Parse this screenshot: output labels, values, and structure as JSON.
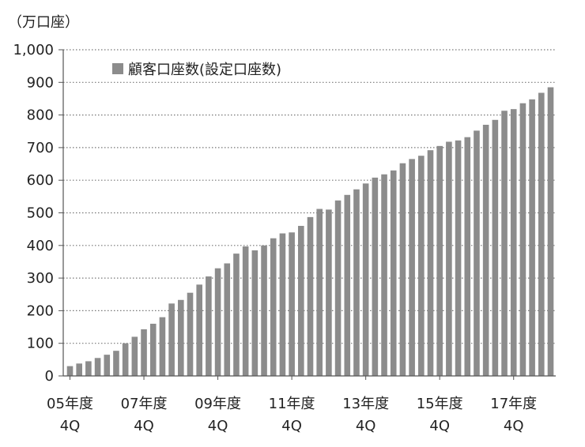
{
  "chart_data": {
    "type": "bar",
    "unit_label": "（万口座）",
    "legend_entries": [
      "顧客口座数(設定口座数)"
    ],
    "ylim": [
      0,
      1000
    ],
    "yticks": [
      "0",
      "100",
      "200",
      "300",
      "400",
      "500",
      "600",
      "700",
      "800",
      "900",
      "1,000"
    ],
    "grid": true,
    "legend_placement": "top-left",
    "x_tick_labels": [
      {
        "year": "05年度",
        "quarter": "4Q",
        "index": 0
      },
      {
        "year": "07年度",
        "quarter": "4Q",
        "index": 8
      },
      {
        "year": "09年度",
        "quarter": "4Q",
        "index": 16
      },
      {
        "year": "11年度",
        "quarter": "4Q",
        "index": 24
      },
      {
        "year": "13年度",
        "quarter": "4Q",
        "index": 32
      },
      {
        "year": "15年度",
        "quarter": "4Q",
        "index": 40
      },
      {
        "year": "17年度",
        "quarter": "4Q",
        "index": 48
      }
    ],
    "series": [
      {
        "color": "#8c8c8c",
        "values": [
          30,
          38,
          45,
          55,
          65,
          77,
          100,
          120,
          143,
          160,
          180,
          222,
          233,
          255,
          280,
          305,
          330,
          345,
          375,
          397,
          385,
          400,
          422,
          437,
          440,
          460,
          487,
          512,
          510,
          538,
          555,
          572,
          590,
          608,
          618,
          630,
          652,
          665,
          675,
          692,
          705,
          718,
          722,
          732,
          752,
          770,
          785,
          813,
          818,
          836,
          848,
          868,
          885
        ]
      }
    ]
  }
}
